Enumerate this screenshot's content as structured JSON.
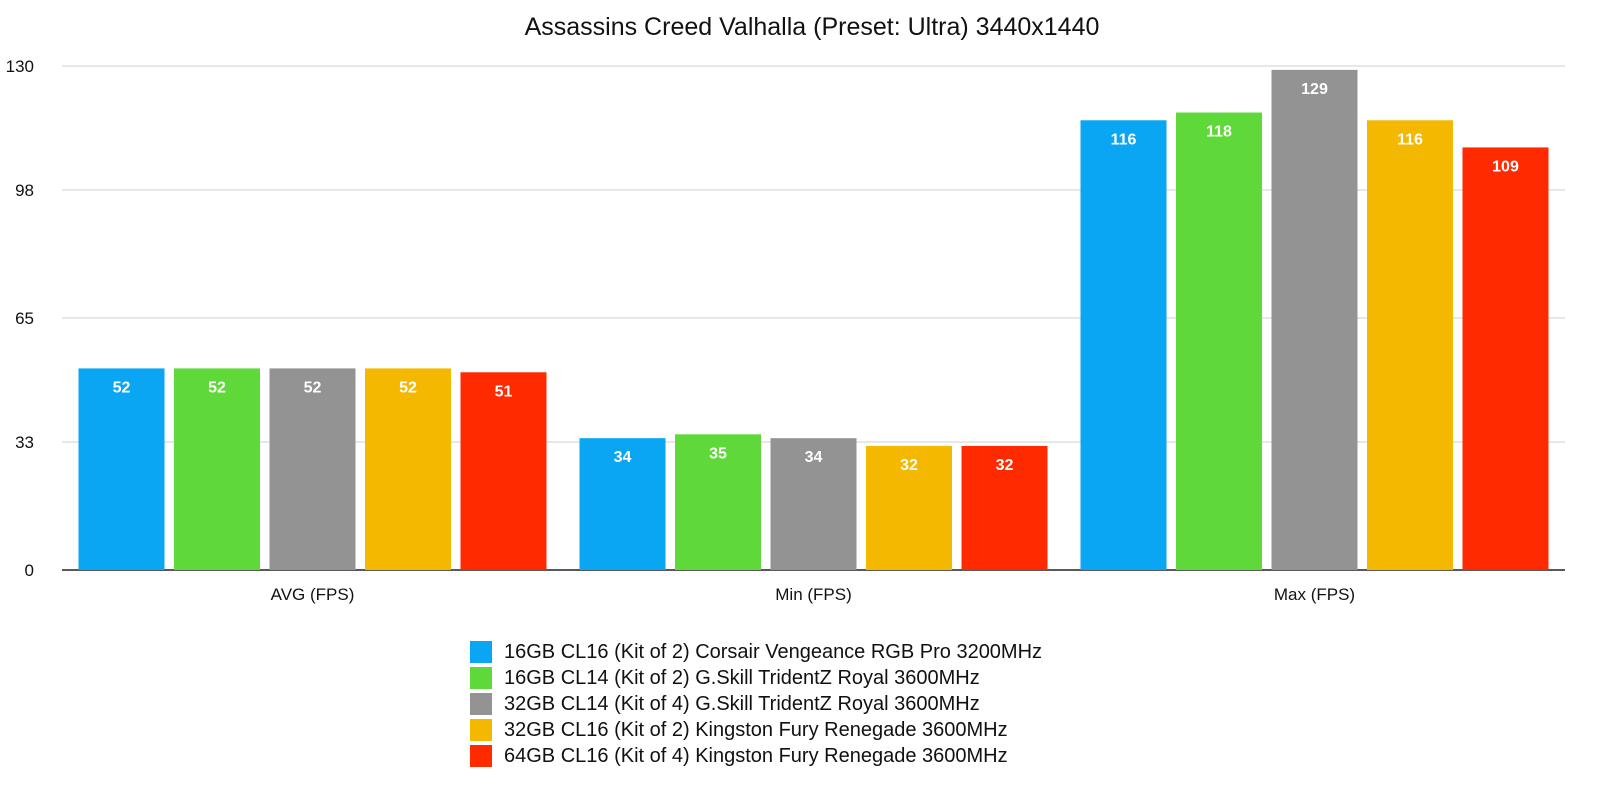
{
  "chart_data": {
    "type": "bar",
    "title": "Assassins Creed Valhalla (Preset: Ultra) 3440x1440",
    "categories": [
      "AVG (FPS)",
      "Min (FPS)",
      "Max (FPS)"
    ],
    "yticks": [
      0,
      33,
      65,
      98,
      130
    ],
    "ylim": [
      0,
      130
    ],
    "grid": true,
    "legend_position": "bottom",
    "series": [
      {
        "name": "16GB CL16 (Kit of 2) Corsair Vengeance RGB Pro 3200MHz",
        "color": "#0aa6f4",
        "values": [
          52,
          34,
          116
        ]
      },
      {
        "name": "16GB CL14 (Kit of 2) G.Skill TridentZ Royal 3600MHz",
        "color": "#5fd83a",
        "values": [
          52,
          35,
          118
        ]
      },
      {
        "name": "32GB CL14 (Kit of 4) G.Skill TridentZ Royal 3600MHz",
        "color": "#939393",
        "values": [
          52,
          34,
          129
        ]
      },
      {
        "name": "32GB CL16 (Kit of 2) Kingston Fury Renegade 3600MHz",
        "color": "#f5b800",
        "values": [
          52,
          32,
          116
        ]
      },
      {
        "name": "64GB CL16 (Kit of 4) Kingston Fury Renegade 3600MHz",
        "color": "#ff2a00",
        "values": [
          51,
          32,
          109
        ]
      }
    ]
  }
}
